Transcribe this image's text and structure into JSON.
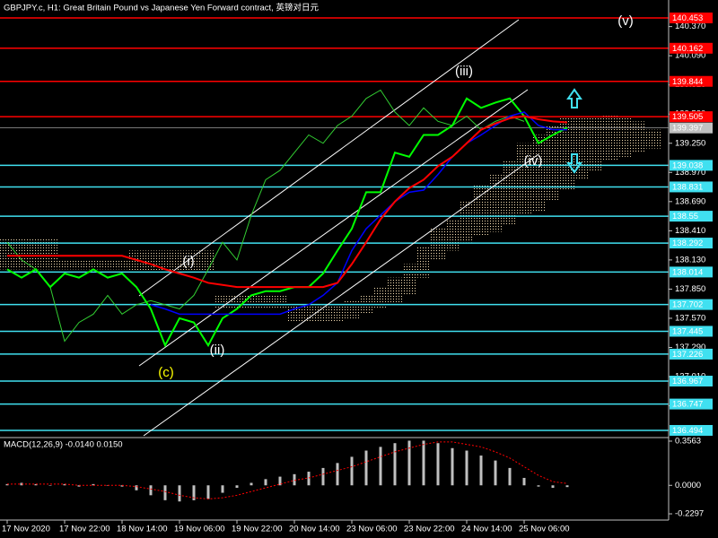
{
  "chart_data": [
    {
      "type": "line",
      "title": "GBPJPY.c, H1:  Great Britain Pound vs Japanese Yen Forward contract, 英镑对日元",
      "categories": [
        "17 Nov 2020",
        null,
        null,
        null,
        "17 Nov 22:00",
        null,
        null,
        null,
        "18 Nov 14:00",
        null,
        null,
        null,
        "19 Nov 06:00",
        null,
        null,
        null,
        "19 Nov 22:00",
        null,
        null,
        null,
        "20 Nov 14:00",
        null,
        null,
        null,
        "23 Nov 06:00",
        null,
        null,
        null,
        "23 Nov 22:00",
        null,
        null,
        null,
        "24 Nov 14:00",
        null,
        null,
        null,
        "25 Nov 06:00",
        null,
        null,
        null,
        null,
        null,
        null,
        null,
        null,
        null
      ],
      "ylim": [
        136.425,
        140.625
      ],
      "yticks": [
        {
          "value": 140.37,
          "label": "140.370"
        },
        {
          "value": 140.09,
          "label": "140.090"
        },
        {
          "value": 139.81,
          "label": "139.810"
        },
        {
          "value": 139.53,
          "label": "139.530"
        },
        {
          "value": 139.25,
          "label": "139.250"
        },
        {
          "value": 138.97,
          "label": "138.970"
        },
        {
          "value": 138.69,
          "label": "138.690"
        },
        {
          "value": 138.41,
          "label": "138.410"
        },
        {
          "value": 138.13,
          "label": "138.130"
        },
        {
          "value": 137.85,
          "label": "137.850"
        },
        {
          "value": 137.57,
          "label": "137.570"
        },
        {
          "value": 137.29,
          "label": "137.290"
        },
        {
          "value": 137.01,
          "label": "137.010"
        },
        {
          "value": 136.73,
          "label": "136.730"
        }
      ],
      "cloud": {
        "color": "#f5deb3",
        "values_a": [
          138.34,
          138.34,
          138.34,
          138.34,
          138.13,
          138.13,
          138.13,
          138.13,
          138.13,
          138.22,
          138.22,
          138.22,
          138.22,
          138.22,
          138.22,
          137.79,
          137.79,
          137.79,
          137.79,
          137.79,
          137.7,
          137.7,
          137.7,
          137.7,
          137.74,
          137.79,
          137.87,
          137.96,
          138.09,
          138.26,
          138.43,
          138.52,
          138.69,
          138.86,
          138.95,
          139.08,
          139.25,
          139.33,
          139.42,
          139.49,
          139.51,
          139.51,
          139.52,
          139.51,
          139.46,
          139.38
        ],
        "values_b": [
          138.04,
          138.04,
          138.04,
          138.04,
          138.04,
          138.04,
          138.04,
          138.04,
          138.04,
          138.0,
          138.0,
          138.0,
          138.0,
          138.0,
          138.0,
          137.66,
          137.66,
          137.66,
          137.66,
          137.66,
          137.53,
          137.53,
          137.53,
          137.53,
          137.57,
          137.61,
          137.66,
          137.7,
          137.79,
          137.96,
          138.13,
          138.22,
          138.3,
          138.37,
          138.4,
          138.47,
          138.56,
          138.6,
          138.69,
          138.8,
          138.9,
          138.99,
          139.08,
          139.12,
          139.16,
          139.2
        ]
      },
      "series": [
        {
          "color": "#32cd32",
          "width": 1,
          "values": [
            138.3,
            138.13,
            138.04,
            137.87,
            137.35,
            137.53,
            137.61,
            137.79,
            137.61,
            137.7,
            137.74,
            137.7,
            137.66,
            137.79,
            138.04,
            138.3,
            138.13,
            138.56,
            138.9,
            138.99,
            139.16,
            139.33,
            139.25,
            139.42,
            139.51,
            139.68,
            139.76,
            139.55,
            139.42,
            139.59,
            139.46,
            139.42,
            139.51,
            139.38,
            139.46,
            139.51,
            139.46,
            null,
            null,
            null,
            null,
            null,
            null,
            null,
            null,
            null
          ]
        },
        {
          "color": "#00ff00",
          "width": 2,
          "values": [
            138.04,
            137.96,
            138.04,
            137.87,
            138.0,
            137.96,
            138.04,
            137.96,
            138.0,
            137.87,
            137.66,
            137.31,
            137.57,
            137.53,
            137.31,
            137.57,
            137.66,
            137.79,
            137.83,
            137.83,
            137.87,
            137.87,
            138.0,
            138.22,
            138.43,
            138.78,
            138.78,
            139.16,
            139.12,
            139.33,
            139.33,
            139.42,
            139.68,
            139.59,
            139.64,
            139.68,
            139.51,
            139.25,
            139.33,
            139.4,
            null,
            null,
            null,
            null,
            null,
            null
          ]
        },
        {
          "color": "#0000ff",
          "width": 1.5,
          "values": [
            null,
            null,
            null,
            null,
            null,
            null,
            null,
            null,
            null,
            null,
            137.7,
            137.66,
            137.61,
            137.61,
            137.61,
            137.61,
            137.61,
            137.61,
            137.61,
            137.61,
            137.66,
            137.7,
            137.79,
            137.91,
            138.22,
            138.43,
            138.56,
            138.69,
            138.78,
            138.8,
            138.95,
            139.12,
            139.25,
            139.33,
            139.42,
            139.51,
            139.55,
            139.42,
            139.38,
            139.38,
            null,
            null,
            null,
            null,
            null,
            null
          ]
        },
        {
          "color": "#ff0000",
          "width": 2,
          "values": [
            138.17,
            138.17,
            138.17,
            138.17,
            138.17,
            138.17,
            138.17,
            138.17,
            138.17,
            138.13,
            138.09,
            138.04,
            138.0,
            137.96,
            137.91,
            137.89,
            137.87,
            137.87,
            137.87,
            137.87,
            137.87,
            137.87,
            137.87,
            137.91,
            138.09,
            138.3,
            138.52,
            138.69,
            138.82,
            138.9,
            139.03,
            139.12,
            139.25,
            139.38,
            139.44,
            139.49,
            139.51,
            139.48,
            139.46,
            139.45,
            null,
            null,
            null,
            null,
            null,
            null
          ]
        }
      ],
      "levels": [
        {
          "value": 140.453,
          "color": "#ff0000"
        },
        {
          "value": 140.162,
          "color": "#ff0000"
        },
        {
          "value": 139.844,
          "color": "#ff0000"
        },
        {
          "value": 139.505,
          "color": "#ff0000"
        },
        {
          "value": 139.038,
          "color": "#40e0f0"
        },
        {
          "value": 138.831,
          "color": "#40e0f0"
        },
        {
          "value": 138.55,
          "color": "#40e0f0"
        },
        {
          "value": 138.292,
          "color": "#40e0f0"
        },
        {
          "value": 138.014,
          "color": "#40e0f0"
        },
        {
          "value": 137.702,
          "color": "#40e0f0"
        },
        {
          "value": 137.445,
          "color": "#40e0f0"
        },
        {
          "value": 137.226,
          "color": "#40e0f0"
        },
        {
          "value": 136.967,
          "color": "#40e0f0"
        },
        {
          "value": 136.747,
          "color": "#40e0f0"
        },
        {
          "value": 136.494,
          "color": "#40e0f0"
        }
      ],
      "last_price": {
        "value": 139.397,
        "color": "#c0c0c0"
      },
      "annotations": [
        {
          "text": "(v)",
          "color": "#ffffff"
        },
        {
          "text": "(iii)",
          "color": "#ffffff"
        },
        {
          "text": "(iv)",
          "color": "#ffffff"
        },
        {
          "text": "(i)",
          "color": "#ffffff"
        },
        {
          "text": "(ii)",
          "color": "#ffffff"
        },
        {
          "text": "(c)",
          "color": "#ffff00"
        }
      ]
    },
    {
      "type": "bar",
      "title": "MACD(12,26,9) -0.0140 0.0150",
      "ylim": [
        -0.28,
        0.385
      ],
      "yticks": [
        0.3563,
        {
          "value": 0,
          "label": "0.0000"
        },
        -0.2297
      ],
      "color": "#c0c0c0",
      "values": [
        0.01,
        0.02,
        0.01,
        0,
        0.01,
        -0.01,
        0.01,
        0,
        -0.01,
        -0.04,
        -0.08,
        -0.12,
        -0.13,
        -0.12,
        -0.11,
        -0.06,
        -0.02,
        0.02,
        0.05,
        0.07,
        0.09,
        0.11,
        0.14,
        0.18,
        0.23,
        0.28,
        0.31,
        0.34,
        0.36,
        0.36,
        0.34,
        0.3,
        0.28,
        0.24,
        0.2,
        0.14,
        0.06,
        -0.01,
        -0.02,
        -0.014
      ],
      "signal": {
        "color": "#ff0000",
        "values": [
          0.01,
          0.01,
          0.01,
          0.01,
          0.01,
          0,
          0,
          0,
          0,
          -0.01,
          -0.03,
          -0.05,
          -0.08,
          -0.1,
          -0.11,
          -0.1,
          -0.08,
          -0.05,
          -0.02,
          0.01,
          0.04,
          0.06,
          0.09,
          0.12,
          0.15,
          0.19,
          0.23,
          0.27,
          0.3,
          0.33,
          0.35,
          0.35,
          0.33,
          0.31,
          0.27,
          0.22,
          0.15,
          0.08,
          0.03,
          0.015
        ]
      }
    }
  ]
}
